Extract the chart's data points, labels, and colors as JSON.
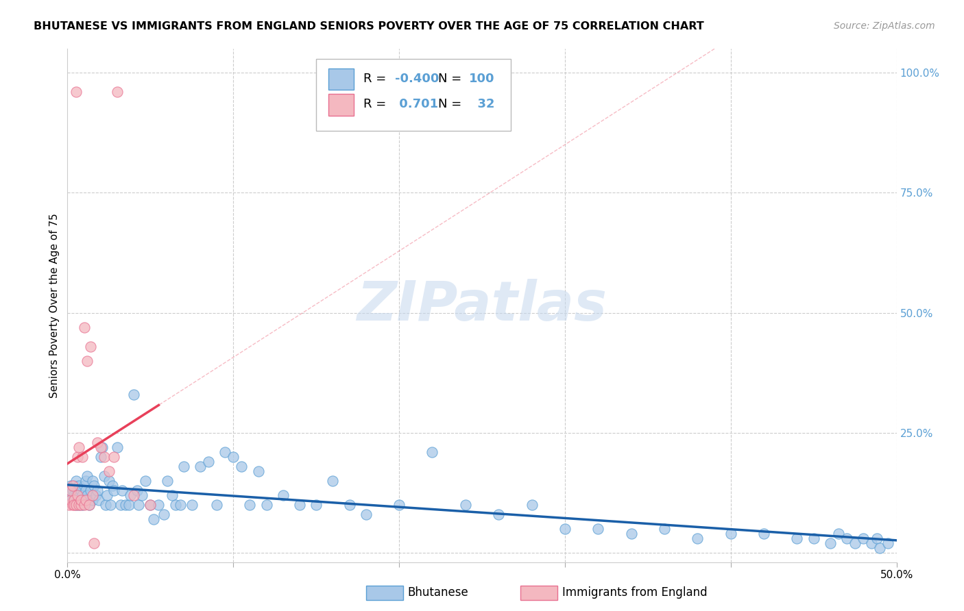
{
  "title": "BHUTANESE VS IMMIGRANTS FROM ENGLAND SENIORS POVERTY OVER THE AGE OF 75 CORRELATION CHART",
  "source": "Source: ZipAtlas.com",
  "ylabel": "Seniors Poverty Over the Age of 75",
  "xlim": [
    0.0,
    0.5
  ],
  "ylim": [
    -0.02,
    1.05
  ],
  "yticks": [
    0.0,
    0.25,
    0.5,
    0.75,
    1.0
  ],
  "ytick_labels": [
    "",
    "25.0%",
    "50.0%",
    "75.0%",
    "100.0%"
  ],
  "xticks": [
    0.0,
    0.1,
    0.2,
    0.3,
    0.4,
    0.5
  ],
  "xtick_labels": [
    "0.0%",
    "",
    "",
    "",
    "",
    "50.0%"
  ],
  "blue_color": "#a8c8e8",
  "blue_edge": "#5a9fd4",
  "pink_color": "#f4b8c0",
  "pink_edge": "#e87090",
  "blue_line_color": "#1a5fa8",
  "pink_line_color": "#e8405a",
  "R_blue": -0.4,
  "N_blue": 100,
  "R_pink": 0.701,
  "N_pink": 32,
  "watermark": "ZIPatlas",
  "legend_labels": [
    "Bhutanese",
    "Immigrants from England"
  ],
  "blue_scatter_x": [
    0.001,
    0.002,
    0.002,
    0.003,
    0.003,
    0.004,
    0.004,
    0.005,
    0.005,
    0.005,
    0.006,
    0.006,
    0.007,
    0.007,
    0.008,
    0.008,
    0.009,
    0.009,
    0.01,
    0.01,
    0.011,
    0.011,
    0.012,
    0.012,
    0.013,
    0.014,
    0.015,
    0.015,
    0.016,
    0.017,
    0.018,
    0.019,
    0.02,
    0.021,
    0.022,
    0.023,
    0.024,
    0.025,
    0.026,
    0.027,
    0.028,
    0.03,
    0.032,
    0.033,
    0.035,
    0.037,
    0.038,
    0.04,
    0.042,
    0.043,
    0.045,
    0.047,
    0.05,
    0.052,
    0.055,
    0.058,
    0.06,
    0.063,
    0.065,
    0.068,
    0.07,
    0.075,
    0.08,
    0.085,
    0.09,
    0.095,
    0.1,
    0.105,
    0.11,
    0.115,
    0.12,
    0.13,
    0.14,
    0.15,
    0.16,
    0.17,
    0.18,
    0.2,
    0.22,
    0.24,
    0.26,
    0.28,
    0.3,
    0.32,
    0.34,
    0.36,
    0.38,
    0.4,
    0.42,
    0.44,
    0.45,
    0.46,
    0.465,
    0.47,
    0.475,
    0.48,
    0.485,
    0.488,
    0.49,
    0.495
  ],
  "blue_scatter_y": [
    0.13,
    0.12,
    0.14,
    0.11,
    0.13,
    0.12,
    0.14,
    0.1,
    0.12,
    0.15,
    0.11,
    0.13,
    0.1,
    0.14,
    0.11,
    0.13,
    0.1,
    0.12,
    0.11,
    0.14,
    0.13,
    0.15,
    0.12,
    0.16,
    0.1,
    0.13,
    0.11,
    0.15,
    0.14,
    0.12,
    0.13,
    0.11,
    0.2,
    0.22,
    0.16,
    0.1,
    0.12,
    0.15,
    0.1,
    0.14,
    0.13,
    0.22,
    0.1,
    0.13,
    0.1,
    0.1,
    0.12,
    0.33,
    0.13,
    0.1,
    0.12,
    0.15,
    0.1,
    0.07,
    0.1,
    0.08,
    0.15,
    0.12,
    0.1,
    0.1,
    0.18,
    0.1,
    0.18,
    0.19,
    0.1,
    0.21,
    0.2,
    0.18,
    0.1,
    0.17,
    0.1,
    0.12,
    0.1,
    0.1,
    0.15,
    0.1,
    0.08,
    0.1,
    0.21,
    0.1,
    0.08,
    0.1,
    0.05,
    0.05,
    0.04,
    0.05,
    0.03,
    0.04,
    0.04,
    0.03,
    0.03,
    0.02,
    0.04,
    0.03,
    0.02,
    0.03,
    0.02,
    0.03,
    0.01,
    0.02
  ],
  "pink_scatter_x": [
    0.001,
    0.002,
    0.002,
    0.003,
    0.003,
    0.004,
    0.004,
    0.005,
    0.005,
    0.006,
    0.006,
    0.007,
    0.007,
    0.008,
    0.008,
    0.009,
    0.01,
    0.01,
    0.011,
    0.012,
    0.013,
    0.014,
    0.015,
    0.016,
    0.018,
    0.02,
    0.022,
    0.025,
    0.028,
    0.03,
    0.04,
    0.05
  ],
  "pink_scatter_y": [
    0.1,
    0.11,
    0.13,
    0.14,
    0.1,
    0.11,
    0.1,
    0.96,
    0.1,
    0.12,
    0.2,
    0.22,
    0.1,
    0.1,
    0.11,
    0.2,
    0.47,
    0.1,
    0.11,
    0.4,
    0.1,
    0.43,
    0.12,
    0.02,
    0.23,
    0.22,
    0.2,
    0.17,
    0.2,
    0.96,
    0.12,
    0.1
  ]
}
